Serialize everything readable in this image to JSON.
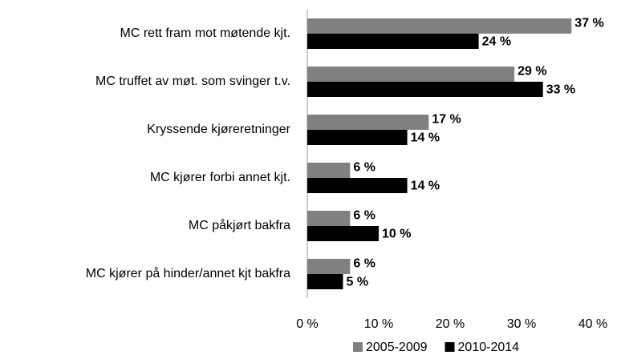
{
  "chart_data": {
    "type": "bar",
    "orientation": "horizontal",
    "categories": [
      "MC rett fram mot møtende kjt.",
      "MC truffet av møt. som svinger t.v.",
      "Kryssende kjøreretninger",
      "MC kjører forbi annet kjt.",
      "MC påkjørt bakfra",
      "MC kjører på hinder/annet kjt bakfra"
    ],
    "series": [
      {
        "name": "2005-2009",
        "color": "#808080",
        "values": [
          37,
          29,
          17,
          6,
          6,
          6
        ],
        "value_labels": [
          "37 %",
          "29 %",
          "17 %",
          "6 %",
          "6 %",
          "6 %"
        ]
      },
      {
        "name": "2010-2014",
        "color": "#000000",
        "values": [
          24,
          33,
          14,
          14,
          10,
          5
        ],
        "value_labels": [
          "24 %",
          "33 %",
          "14 %",
          "14 %",
          "10 %",
          "5 %"
        ]
      }
    ],
    "xlim": [
      0,
      40
    ],
    "xticks": [
      {
        "value": 0,
        "label": "0 %"
      },
      {
        "value": 10,
        "label": "10 %"
      },
      {
        "value": 20,
        "label": "20 %"
      },
      {
        "value": 30,
        "label": "30 %"
      },
      {
        "value": 40,
        "label": "40 %"
      }
    ],
    "legend": "bottom"
  }
}
